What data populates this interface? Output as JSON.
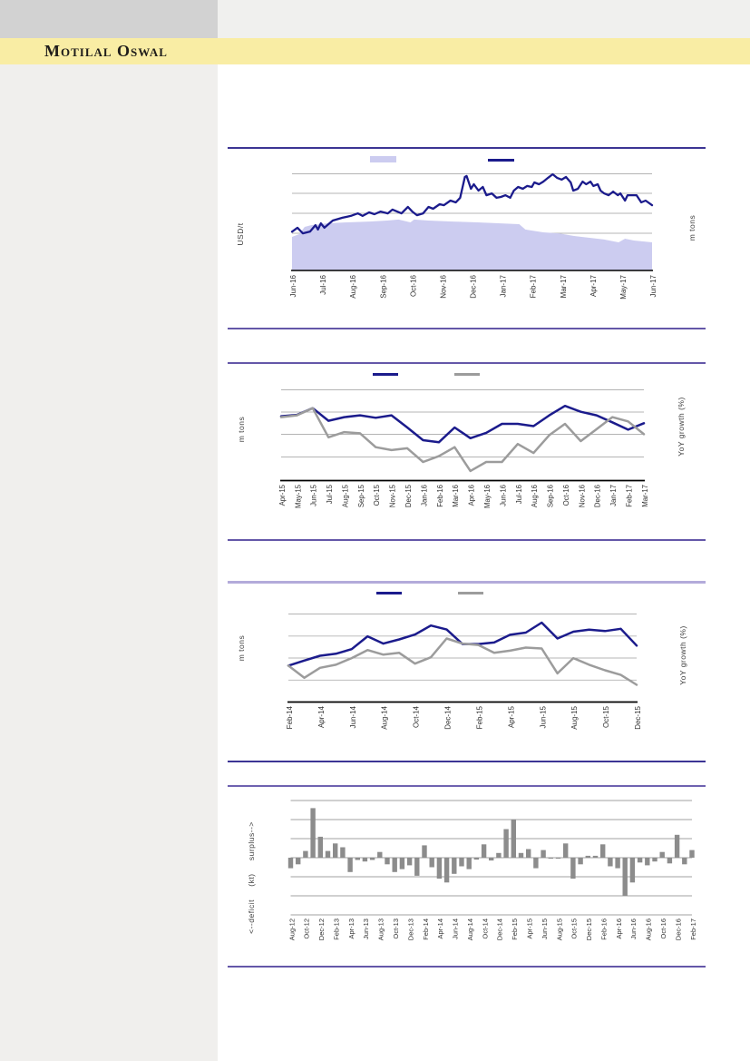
{
  "brand": {
    "name": "Motilal Oswal"
  },
  "colors": {
    "banner_yellow": "#f9eda4",
    "sidebar_gray": "#f0efed",
    "header_block_gray": "#d2d2d2",
    "navy_series": "#1b1b8c",
    "lavender_area": "#ccccf0",
    "gray_series": "#9c9c9c",
    "bar_gray": "#8c8c8c",
    "divider_purple": "#6457a8"
  },
  "chart_data": [
    {
      "id": "price-vs-inventory",
      "type": "area+line",
      "title": "",
      "left_axis_label": "USD/t",
      "right_axis_label": "m tons",
      "grid": "horizontal gridlines only, no numeric tick labels shown",
      "units_note": "values are in gridline-interval units above the x-axis (no numeric axis labels visible in source)",
      "x_labels": [
        "Jun-16",
        "Jul-16",
        "Aug-16",
        "Sep-16",
        "Oct-16",
        "Nov-16",
        "Dec-16",
        "Jan-17",
        "Feb-17",
        "Mar-17",
        "Apr-17",
        "May-17",
        "Jun-17"
      ],
      "legend": [
        {
          "label": "",
          "swatch": "area",
          "color": "#ccccf0"
        },
        {
          "label": "",
          "swatch": "line",
          "color": "#1b1b8c"
        }
      ],
      "series": [
        {
          "name": "inventory-area",
          "type": "area",
          "color": "#ccccf0",
          "points": [
            [
              0,
              1.68
            ],
            [
              0.02,
              1.82
            ],
            [
              0.035,
              2.18
            ],
            [
              0.053,
              2.27
            ],
            [
              0.095,
              2.36
            ],
            [
              0.153,
              2.41
            ],
            [
              0.214,
              2.45
            ],
            [
              0.264,
              2.5
            ],
            [
              0.296,
              2.55
            ],
            [
              0.329,
              2.41
            ],
            [
              0.339,
              2.55
            ],
            [
              0.379,
              2.5
            ],
            [
              0.447,
              2.45
            ],
            [
              0.515,
              2.41
            ],
            [
              0.58,
              2.36
            ],
            [
              0.631,
              2.32
            ],
            [
              0.648,
              2.05
            ],
            [
              0.698,
              1.91
            ],
            [
              0.741,
              1.86
            ],
            [
              0.781,
              1.73
            ],
            [
              0.824,
              1.64
            ],
            [
              0.867,
              1.55
            ],
            [
              0.907,
              1.41
            ],
            [
              0.925,
              1.59
            ],
            [
              0.95,
              1.5
            ],
            [
              1,
              1.41
            ]
          ]
        },
        {
          "name": "price-line",
          "type": "line",
          "color": "#1b1b8c",
          "points": [
            [
              0,
              1.94
            ],
            [
              0.015,
              2.14
            ],
            [
              0.03,
              1.86
            ],
            [
              0.05,
              1.95
            ],
            [
              0.065,
              2.27
            ],
            [
              0.072,
              2.05
            ],
            [
              0.08,
              2.36
            ],
            [
              0.09,
              2.14
            ],
            [
              0.113,
              2.5
            ],
            [
              0.14,
              2.64
            ],
            [
              0.163,
              2.73
            ],
            [
              0.183,
              2.86
            ],
            [
              0.196,
              2.73
            ],
            [
              0.214,
              2.91
            ],
            [
              0.229,
              2.82
            ],
            [
              0.246,
              2.95
            ],
            [
              0.266,
              2.86
            ],
            [
              0.279,
              3.05
            ],
            [
              0.304,
              2.86
            ],
            [
              0.322,
              3.18
            ],
            [
              0.334,
              2.95
            ],
            [
              0.347,
              2.77
            ],
            [
              0.364,
              2.86
            ],
            [
              0.379,
              3.18
            ],
            [
              0.392,
              3.09
            ],
            [
              0.41,
              3.32
            ],
            [
              0.422,
              3.27
            ],
            [
              0.44,
              3.5
            ],
            [
              0.455,
              3.41
            ],
            [
              0.467,
              3.64
            ],
            [
              0.48,
              4.68
            ],
            [
              0.485,
              4.73
            ],
            [
              0.497,
              4.09
            ],
            [
              0.505,
              4.32
            ],
            [
              0.518,
              4.0
            ],
            [
              0.53,
              4.18
            ],
            [
              0.54,
              3.77
            ],
            [
              0.555,
              3.86
            ],
            [
              0.568,
              3.64
            ],
            [
              0.58,
              3.68
            ],
            [
              0.593,
              3.77
            ],
            [
              0.606,
              3.64
            ],
            [
              0.616,
              4.0
            ],
            [
              0.628,
              4.18
            ],
            [
              0.641,
              4.09
            ],
            [
              0.653,
              4.23
            ],
            [
              0.666,
              4.18
            ],
            [
              0.673,
              4.41
            ],
            [
              0.686,
              4.32
            ],
            [
              0.698,
              4.45
            ],
            [
              0.711,
              4.64
            ],
            [
              0.724,
              4.82
            ],
            [
              0.736,
              4.64
            ],
            [
              0.749,
              4.55
            ],
            [
              0.761,
              4.68
            ],
            [
              0.774,
              4.41
            ],
            [
              0.781,
              4.0
            ],
            [
              0.794,
              4.09
            ],
            [
              0.807,
              4.45
            ],
            [
              0.817,
              4.32
            ],
            [
              0.829,
              4.45
            ],
            [
              0.837,
              4.23
            ],
            [
              0.849,
              4.32
            ],
            [
              0.857,
              4.0
            ],
            [
              0.867,
              3.86
            ],
            [
              0.879,
              3.77
            ],
            [
              0.892,
              3.95
            ],
            [
              0.905,
              3.77
            ],
            [
              0.912,
              3.86
            ],
            [
              0.925,
              3.5
            ],
            [
              0.932,
              3.77
            ],
            [
              0.945,
              3.77
            ],
            [
              0.957,
              3.77
            ],
            [
              0.97,
              3.41
            ],
            [
              0.982,
              3.5
            ],
            [
              1,
              3.27
            ]
          ]
        }
      ]
    },
    {
      "id": "mtons-yoy-2015-2017",
      "type": "line",
      "title": "",
      "left_axis_label": "m tons",
      "right_axis_label": "YoY growth (%)",
      "units_note": "values are in gridline-interval units above the x-axis (no numeric axis labels visible in source)",
      "label_every": 1,
      "x_labels": [
        "Apr-15",
        "May-15",
        "Jun-15",
        "Jul-15",
        "Aug-15",
        "Sep-15",
        "Oct-15",
        "Nov-15",
        "Dec-15",
        "Jan-16",
        "Feb-16",
        "Mar-16",
        "Apr-16",
        "May-16",
        "Jun-16",
        "Jul-16",
        "Aug-16",
        "Sep-16",
        "Oct-16",
        "Nov-16",
        "Dec-16",
        "Jan-17",
        "Feb-17",
        "Mar-17"
      ],
      "legend": [
        {
          "label": "",
          "swatch": "line",
          "color": "#1b1b8c"
        },
        {
          "label": "",
          "swatch": "line",
          "color": "#9c9c9c"
        }
      ],
      "series": [
        {
          "name": "navy-line",
          "type": "line",
          "color": "#1b1b8c",
          "values": [
            2.87,
            2.93,
            3.23,
            2.67,
            2.83,
            2.91,
            2.8,
            2.91,
            2.37,
            1.8,
            1.71,
            2.37,
            1.89,
            2.13,
            2.53,
            2.53,
            2.43,
            2.91,
            3.33,
            3.07,
            2.91,
            2.6,
            2.27,
            2.56
          ]
        },
        {
          "name": "gray-line",
          "type": "line",
          "color": "#9c9c9c",
          "values": [
            2.83,
            2.91,
            3.23,
            1.93,
            2.16,
            2.11,
            1.49,
            1.36,
            1.44,
            0.83,
            1.09,
            1.49,
            0.43,
            0.83,
            0.83,
            1.63,
            1.23,
            2.03,
            2.53,
            1.76,
            2.29,
            2.83,
            2.64,
            2.07
          ]
        }
      ]
    },
    {
      "id": "mtons-yoy-2014-2015",
      "type": "line",
      "title": "",
      "left_axis_label": "m tons",
      "right_axis_label": "YoY growth (%)",
      "units_note": "values are in gridline-interval units above the x-axis (no numeric axis labels visible in source); data points are monthly Feb-14..Dec-15, labels shown every 2 months",
      "label_every": 2,
      "x_labels": [
        "Feb-14",
        "Apr-14",
        "Jun-14",
        "Aug-14",
        "Oct-14",
        "Dec-14",
        "Feb-15",
        "Apr-15",
        "Jun-15",
        "Aug-15",
        "Oct-15",
        "Dec-15"
      ],
      "legend": [
        {
          "label": "",
          "swatch": "line",
          "color": "#1b1b8c"
        },
        {
          "label": "",
          "swatch": "line",
          "color": "#9c9c9c"
        }
      ],
      "series": [
        {
          "name": "navy-line",
          "type": "line",
          "color": "#1b1b8c",
          "values": [
            1.65,
            1.88,
            2.1,
            2.19,
            2.4,
            2.98,
            2.65,
            2.84,
            3.06,
            3.47,
            3.29,
            2.63,
            2.63,
            2.7,
            3.05,
            3.15,
            3.6,
            2.88,
            3.19,
            3.28,
            3.22,
            3.32,
            2.56
          ]
        },
        {
          "name": "gray-line",
          "type": "line",
          "color": "#9c9c9c",
          "values": [
            1.65,
            1.1,
            1.55,
            1.69,
            1.99,
            2.36,
            2.15,
            2.23,
            1.74,
            2.03,
            2.88,
            2.65,
            2.59,
            2.23,
            2.33,
            2.47,
            2.43,
            1.3,
            1.99,
            1.69,
            1.44,
            1.23,
            0.78
          ]
        }
      ]
    },
    {
      "id": "deficit-surplus-balance",
      "type": "bar",
      "title": "",
      "left_axis_label": "<--deficit     (kt)     surplus-->",
      "right_axis_label": "",
      "color": "#8c8c8c",
      "units_note": "monthly bars Aug-12..Feb-17 in gridline-interval units around the zero line (no numeric axis labels visible in source); labels shown every 2 months",
      "label_every": 2,
      "x_labels": [
        "Aug-12",
        "Oct-12",
        "Dec-12",
        "Feb-13",
        "Apr-13",
        "Jun-13",
        "Aug-13",
        "Oct-13",
        "Dec-13",
        "Feb-14",
        "Apr-14",
        "Jun-14",
        "Aug-14",
        "Oct-14",
        "Dec-14",
        "Feb-15",
        "Apr-15",
        "Jun-15",
        "Aug-15",
        "Oct-15",
        "Dec-15",
        "Feb-16",
        "Apr-16",
        "Jun-16",
        "Aug-16",
        "Oct-16",
        "Dec-16",
        "Feb-17"
      ],
      "values": [
        -0.55,
        -0.35,
        0.35,
        2.6,
        1.1,
        0.35,
        0.75,
        0.55,
        -0.75,
        -0.12,
        -0.2,
        -0.12,
        0.3,
        -0.35,
        -0.75,
        -0.6,
        -0.4,
        -0.95,
        0.65,
        -0.5,
        -1.1,
        -1.3,
        -0.85,
        -0.45,
        -0.6,
        -0.1,
        0.7,
        -0.15,
        0.25,
        1.5,
        2.0,
        0.25,
        0.45,
        -0.55,
        0.4,
        -0.05,
        -0.05,
        0.75,
        -1.1,
        -0.35,
        0.1,
        0.1,
        0.7,
        -0.45,
        -0.55,
        -2.0,
        -1.3,
        -0.25,
        -0.4,
        -0.2,
        0.3,
        -0.3,
        1.2,
        -0.35,
        0.4
      ]
    }
  ]
}
